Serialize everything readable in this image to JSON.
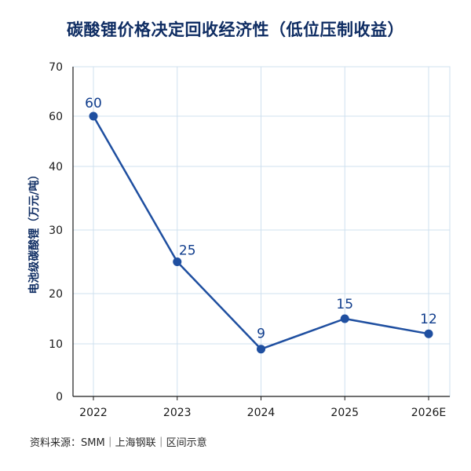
{
  "chart_data": {
    "type": "line",
    "title": "碳酸锂价格决定回收经济性（低位压制收益）",
    "xlabel": "",
    "ylabel": "电池级碳酸锂（万元/吨）",
    "categories": [
      "2022",
      "2023",
      "2024",
      "2025",
      "2026E"
    ],
    "series": [
      {
        "values": [
          60,
          25,
          9,
          15,
          12
        ],
        "labels": [
          "60",
          "25",
          "9",
          "15",
          "12"
        ]
      }
    ],
    "y_ticks": [
      {
        "value": 0,
        "label": "0"
      },
      {
        "value": 10,
        "label": "10"
      },
      {
        "value": 20,
        "label": "20"
      },
      {
        "value": 30,
        "label": "30"
      },
      {
        "value": 40,
        "label": "40"
      },
      {
        "value": 60,
        "label": "60"
      },
      {
        "value": 70,
        "label": "70"
      }
    ],
    "ylim": [
      0,
      70
    ],
    "grid": true,
    "line_color": "#1f4fa0",
    "grid_color": "#cfe0ef",
    "axis_color": "#1a1a1a"
  },
  "source": "资料来源：SMM｜上海钢联｜区间示意"
}
